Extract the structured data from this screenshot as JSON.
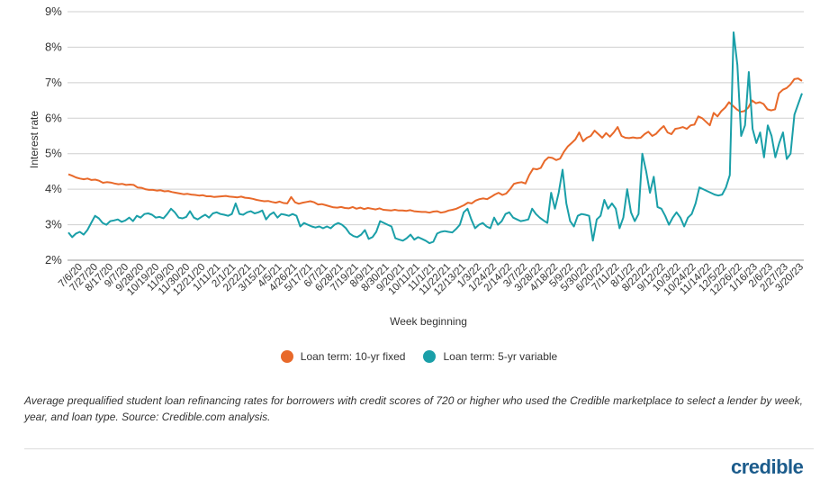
{
  "chart_data": {
    "type": "line",
    "xlabel": "Week beginning",
    "ylabel": "Interest rate",
    "ylim": [
      2,
      9
    ],
    "y_ticks": [
      "2%",
      "3%",
      "4%",
      "5%",
      "6%",
      "7%",
      "8%",
      "9%"
    ],
    "grid": "horizontal",
    "legend_placement": "bottom",
    "x_ticks": [
      "7/6/20",
      "7/27/20",
      "8/17/20",
      "9/7/20",
      "9/28/20",
      "10/19/20",
      "11/9/20",
      "11/30/20",
      "12/21/20",
      "1/11/21",
      "2/1/21",
      "2/22/21",
      "3/15/21",
      "4/5/21",
      "4/26/21",
      "5/17/21",
      "6/7/21",
      "6/28/21",
      "7/19/21",
      "8/9/21",
      "8/30/21",
      "9/20/21",
      "10/11/21",
      "11/1/21",
      "11/22/21",
      "12/13/21",
      "1/3/22",
      "1/24/22",
      "2/14/22",
      "3/7/22",
      "3/28/22",
      "4/18/22",
      "5/9/22",
      "5/30/22",
      "6/20/22",
      "7/11/22",
      "8/1/22",
      "8/22/22",
      "9/12/22",
      "10/3/22",
      "10/24/22",
      "11/14/22",
      "12/5/22",
      "12/26/22",
      "1/16/23",
      "2/6/23",
      "2/27/23",
      "3/20/23"
    ],
    "series": [
      {
        "name": "Loan term: 10-yr fixed",
        "color": "#e8692a",
        "values": [
          4.42,
          4.38,
          4.33,
          4.3,
          4.28,
          4.3,
          4.26,
          4.27,
          4.24,
          4.18,
          4.2,
          4.19,
          4.16,
          4.14,
          4.15,
          4.12,
          4.13,
          4.12,
          4.05,
          4.04,
          4.0,
          3.98,
          3.98,
          3.96,
          3.97,
          3.94,
          3.95,
          3.92,
          3.9,
          3.88,
          3.86,
          3.87,
          3.85,
          3.84,
          3.82,
          3.83,
          3.8,
          3.8,
          3.78,
          3.79,
          3.8,
          3.81,
          3.79,
          3.78,
          3.77,
          3.79,
          3.76,
          3.75,
          3.73,
          3.7,
          3.68,
          3.66,
          3.67,
          3.64,
          3.62,
          3.65,
          3.61,
          3.6,
          3.78,
          3.63,
          3.59,
          3.62,
          3.64,
          3.66,
          3.63,
          3.57,
          3.58,
          3.55,
          3.52,
          3.49,
          3.48,
          3.5,
          3.47,
          3.46,
          3.5,
          3.45,
          3.48,
          3.44,
          3.47,
          3.45,
          3.43,
          3.46,
          3.42,
          3.41,
          3.4,
          3.42,
          3.4,
          3.4,
          3.39,
          3.41,
          3.38,
          3.37,
          3.36,
          3.36,
          3.34,
          3.37,
          3.38,
          3.34,
          3.36,
          3.4,
          3.42,
          3.45,
          3.5,
          3.55,
          3.62,
          3.6,
          3.68,
          3.72,
          3.74,
          3.72,
          3.78,
          3.85,
          3.9,
          3.84,
          3.88,
          4.0,
          4.15,
          4.18,
          4.2,
          4.16,
          4.4,
          4.58,
          4.56,
          4.6,
          4.8,
          4.9,
          4.88,
          4.82,
          4.86,
          5.05,
          5.2,
          5.3,
          5.4,
          5.6,
          5.35,
          5.45,
          5.5,
          5.65,
          5.55,
          5.45,
          5.58,
          5.48,
          5.6,
          5.75,
          5.5,
          5.45,
          5.44,
          5.46,
          5.44,
          5.45,
          5.55,
          5.62,
          5.5,
          5.56,
          5.68,
          5.78,
          5.6,
          5.55,
          5.7,
          5.72,
          5.75,
          5.7,
          5.8,
          5.82,
          6.05,
          6.0,
          5.9,
          5.8,
          6.15,
          6.05,
          6.2,
          6.3,
          6.45,
          6.35,
          6.25,
          6.18,
          6.2,
          6.3,
          6.5,
          6.42,
          6.45,
          6.4,
          6.25,
          6.22,
          6.25,
          6.7,
          6.8,
          6.85,
          6.95,
          7.1,
          7.12,
          7.05
        ]
      },
      {
        "name": "Loan term: 5-yr variable",
        "color": "#1a9fa8",
        "values": [
          2.78,
          2.65,
          2.75,
          2.8,
          2.72,
          2.85,
          3.05,
          3.25,
          3.18,
          3.05,
          3.0,
          3.1,
          3.12,
          3.15,
          3.08,
          3.12,
          3.2,
          3.1,
          3.25,
          3.2,
          3.3,
          3.32,
          3.28,
          3.2,
          3.22,
          3.18,
          3.3,
          3.45,
          3.35,
          3.2,
          3.18,
          3.22,
          3.38,
          3.2,
          3.15,
          3.22,
          3.28,
          3.2,
          3.32,
          3.35,
          3.3,
          3.28,
          3.25,
          3.3,
          3.6,
          3.3,
          3.28,
          3.35,
          3.38,
          3.32,
          3.35,
          3.4,
          3.15,
          3.28,
          3.35,
          3.2,
          3.3,
          3.28,
          3.25,
          3.3,
          3.25,
          2.95,
          3.05,
          3.0,
          2.95,
          2.92,
          2.95,
          2.9,
          2.95,
          2.9,
          3.0,
          3.05,
          3.0,
          2.9,
          2.75,
          2.68,
          2.65,
          2.72,
          2.85,
          2.6,
          2.65,
          2.8,
          3.1,
          3.05,
          3.0,
          2.95,
          2.62,
          2.58,
          2.55,
          2.62,
          2.72,
          2.58,
          2.65,
          2.6,
          2.55,
          2.48,
          2.52,
          2.75,
          2.8,
          2.82,
          2.8,
          2.78,
          2.88,
          3.0,
          3.35,
          3.45,
          3.15,
          2.9,
          3.0,
          3.05,
          2.95,
          2.9,
          3.2,
          3.0,
          3.1,
          3.3,
          3.35,
          3.2,
          3.15,
          3.1,
          3.12,
          3.15,
          3.45,
          3.3,
          3.2,
          3.12,
          3.05,
          3.9,
          3.45,
          3.9,
          4.55,
          3.6,
          3.1,
          2.95,
          3.25,
          3.3,
          3.28,
          3.25,
          2.55,
          3.15,
          3.25,
          3.7,
          3.45,
          3.6,
          3.45,
          2.9,
          3.2,
          4.0,
          3.35,
          3.1,
          3.3,
          5.0,
          4.5,
          3.9,
          4.35,
          3.5,
          3.45,
          3.25,
          3.0,
          3.2,
          3.35,
          3.2,
          2.95,
          3.2,
          3.3,
          3.6,
          4.05,
          4.0,
          3.95,
          3.9,
          3.85,
          3.82,
          3.85,
          4.05,
          4.4,
          8.42,
          7.5,
          5.5,
          5.8,
          7.3,
          5.7,
          5.3,
          5.6,
          4.9,
          5.8,
          5.5,
          4.9,
          5.3,
          5.6,
          4.85,
          5.0,
          6.1,
          6.4,
          6.7
        ]
      }
    ]
  },
  "legend": {
    "fixed_label": "Loan term: 10-yr fixed",
    "variable_label": "Loan term: 5-yr variable"
  },
  "caption": "Average prequalified student loan refinancing rates for borrowers with credit scores of 720 or higher who used the Credible marketplace to select a lender by week, year, and loan type. Source: Credible.com analysis.",
  "logo_text": "credible"
}
